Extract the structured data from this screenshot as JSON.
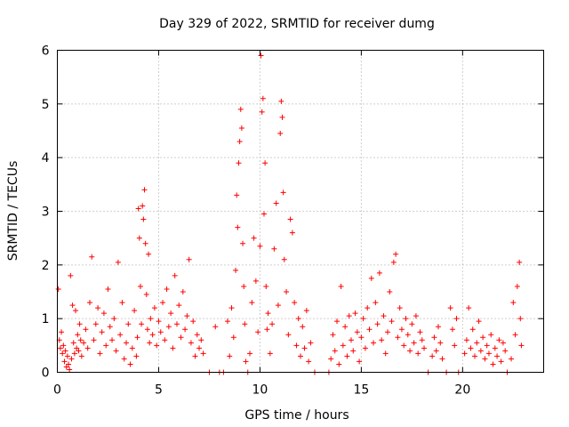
{
  "chart_data": {
    "type": "scatter",
    "title": "Day 329 of 2022, SRMTID for receiver dumg",
    "xlabel": "GPS time / hours",
    "ylabel": "SRMTID / TECUs",
    "xlim": [
      0,
      24
    ],
    "ylim": [
      0,
      6
    ],
    "xticks": [
      0,
      5,
      10,
      15,
      20
    ],
    "yticks": [
      0,
      1,
      2,
      3,
      4,
      5,
      6
    ],
    "grid": true,
    "marker": "+",
    "color": "#ff0000",
    "series": [
      {
        "name": "SRMTID",
        "points": [
          [
            0.05,
            1.55
          ],
          [
            0.1,
            0.6
          ],
          [
            0.15,
            0.45
          ],
          [
            0.2,
            0.75
          ],
          [
            0.25,
            0.35
          ],
          [
            0.3,
            0.5
          ],
          [
            0.35,
            0.2
          ],
          [
            0.4,
            0.4
          ],
          [
            0.45,
            0.1
          ],
          [
            0.5,
            0.3
          ],
          [
            0.55,
            0.15
          ],
          [
            0.6,
            0.05
          ],
          [
            0.65,
            1.8
          ],
          [
            0.7,
            0.25
          ],
          [
            0.75,
            1.25
          ],
          [
            0.8,
            0.55
          ],
          [
            0.85,
            0.35
          ],
          [
            0.9,
            1.15
          ],
          [
            0.95,
            0.45
          ],
          [
            1.0,
            0.7
          ],
          [
            1.05,
            0.4
          ],
          [
            1.1,
            0.9
          ],
          [
            1.15,
            0.6
          ],
          [
            1.2,
            0.3
          ],
          [
            1.3,
            0.55
          ],
          [
            1.4,
            0.8
          ],
          [
            1.5,
            0.45
          ],
          [
            1.6,
            1.3
          ],
          [
            1.7,
            2.15
          ],
          [
            1.8,
            0.6
          ],
          [
            1.9,
            0.9
          ],
          [
            2.0,
            1.2
          ],
          [
            2.1,
            0.35
          ],
          [
            2.2,
            0.75
          ],
          [
            2.3,
            1.1
          ],
          [
            2.4,
            0.5
          ],
          [
            2.5,
            1.55
          ],
          [
            2.6,
            0.85
          ],
          [
            2.7,
            0.6
          ],
          [
            2.8,
            1.0
          ],
          [
            2.9,
            0.4
          ],
          [
            3.0,
            2.05
          ],
          [
            3.1,
            0.7
          ],
          [
            3.2,
            1.3
          ],
          [
            3.3,
            0.25
          ],
          [
            3.4,
            0.55
          ],
          [
            3.5,
            0.9
          ],
          [
            3.6,
            0.15
          ],
          [
            3.7,
            0.45
          ],
          [
            3.8,
            1.15
          ],
          [
            3.9,
            0.3
          ],
          [
            3.95,
            0.65
          ],
          [
            4.0,
            3.05
          ],
          [
            4.05,
            2.5
          ],
          [
            4.1,
            1.6
          ],
          [
            4.15,
            0.9
          ],
          [
            4.2,
            3.1
          ],
          [
            4.25,
            2.85
          ],
          [
            4.3,
            3.4
          ],
          [
            4.35,
            2.4
          ],
          [
            4.4,
            1.45
          ],
          [
            4.45,
            0.8
          ],
          [
            4.5,
            2.2
          ],
          [
            4.55,
            0.55
          ],
          [
            4.6,
            1.0
          ],
          [
            4.7,
            0.7
          ],
          [
            4.8,
            1.2
          ],
          [
            4.9,
            0.5
          ],
          [
            5.0,
            0.95
          ],
          [
            5.1,
            0.75
          ],
          [
            5.2,
            1.3
          ],
          [
            5.3,
            0.6
          ],
          [
            5.4,
            1.55
          ],
          [
            5.5,
            0.85
          ],
          [
            5.6,
            1.1
          ],
          [
            5.7,
            0.45
          ],
          [
            5.8,
            1.8
          ],
          [
            5.9,
            0.9
          ],
          [
            6.0,
            1.25
          ],
          [
            6.1,
            0.65
          ],
          [
            6.2,
            1.5
          ],
          [
            6.3,
            0.8
          ],
          [
            6.4,
            1.05
          ],
          [
            6.5,
            2.1
          ],
          [
            6.6,
            0.55
          ],
          [
            6.7,
            0.95
          ],
          [
            6.8,
            0.3
          ],
          [
            6.9,
            0.7
          ],
          [
            7.0,
            0.45
          ],
          [
            7.1,
            0.6
          ],
          [
            7.2,
            0.35
          ],
          [
            7.5,
            0.0
          ],
          [
            7.8,
            0.85
          ],
          [
            8.0,
            0.0
          ],
          [
            8.2,
            0.0
          ],
          [
            8.4,
            0.95
          ],
          [
            8.5,
            0.3
          ],
          [
            8.6,
            1.2
          ],
          [
            8.7,
            0.65
          ],
          [
            8.8,
            1.9
          ],
          [
            8.85,
            3.3
          ],
          [
            8.9,
            2.7
          ],
          [
            8.95,
            3.9
          ],
          [
            9.0,
            4.3
          ],
          [
            9.05,
            4.9
          ],
          [
            9.1,
            4.55
          ],
          [
            9.15,
            2.4
          ],
          [
            9.2,
            1.6
          ],
          [
            9.25,
            0.9
          ],
          [
            9.3,
            0.2
          ],
          [
            9.4,
            0.0
          ],
          [
            9.5,
            0.35
          ],
          [
            9.6,
            1.3
          ],
          [
            9.7,
            2.5
          ],
          [
            9.8,
            1.7
          ],
          [
            9.9,
            0.75
          ],
          [
            10.0,
            2.35
          ],
          [
            10.05,
            5.9
          ],
          [
            10.1,
            4.85
          ],
          [
            10.15,
            5.1
          ],
          [
            10.2,
            2.95
          ],
          [
            10.25,
            3.9
          ],
          [
            10.3,
            1.6
          ],
          [
            10.35,
            0.8
          ],
          [
            10.4,
            1.1
          ],
          [
            10.5,
            0.35
          ],
          [
            10.6,
            0.9
          ],
          [
            10.7,
            2.3
          ],
          [
            10.8,
            3.15
          ],
          [
            10.9,
            1.25
          ],
          [
            11.0,
            4.45
          ],
          [
            11.05,
            5.05
          ],
          [
            11.1,
            4.75
          ],
          [
            11.15,
            3.35
          ],
          [
            11.2,
            2.1
          ],
          [
            11.3,
            1.5
          ],
          [
            11.4,
            0.7
          ],
          [
            11.5,
            2.85
          ],
          [
            11.6,
            2.6
          ],
          [
            11.7,
            1.3
          ],
          [
            11.8,
            0.5
          ],
          [
            11.9,
            1.0
          ],
          [
            12.0,
            0.3
          ],
          [
            12.1,
            0.85
          ],
          [
            12.2,
            0.45
          ],
          [
            12.3,
            1.15
          ],
          [
            12.4,
            0.2
          ],
          [
            12.5,
            0.55
          ],
          [
            12.7,
            0.0
          ],
          [
            13.4,
            0.0
          ],
          [
            13.5,
            0.25
          ],
          [
            13.6,
            0.7
          ],
          [
            13.7,
            0.4
          ],
          [
            13.8,
            0.95
          ],
          [
            13.9,
            0.15
          ],
          [
            14.0,
            1.6
          ],
          [
            14.1,
            0.5
          ],
          [
            14.2,
            0.85
          ],
          [
            14.3,
            0.3
          ],
          [
            14.4,
            1.05
          ],
          [
            14.5,
            0.6
          ],
          [
            14.6,
            0.4
          ],
          [
            14.7,
            1.1
          ],
          [
            14.8,
            0.75
          ],
          [
            14.9,
            0.2
          ],
          [
            15.0,
            0.65
          ],
          [
            15.1,
            1.0
          ],
          [
            15.2,
            0.45
          ],
          [
            15.3,
            1.2
          ],
          [
            15.4,
            0.8
          ],
          [
            15.5,
            1.75
          ],
          [
            15.6,
            0.55
          ],
          [
            15.7,
            1.3
          ],
          [
            15.8,
            0.9
          ],
          [
            15.9,
            1.85
          ],
          [
            16.0,
            0.6
          ],
          [
            16.1,
            1.05
          ],
          [
            16.2,
            0.35
          ],
          [
            16.3,
            0.75
          ],
          [
            16.4,
            1.5
          ],
          [
            16.5,
            0.95
          ],
          [
            16.6,
            2.05
          ],
          [
            16.7,
            2.2
          ],
          [
            16.8,
            0.65
          ],
          [
            16.9,
            1.2
          ],
          [
            17.0,
            0.8
          ],
          [
            17.1,
            0.5
          ],
          [
            17.2,
            1.0
          ],
          [
            17.3,
            0.7
          ],
          [
            17.4,
            0.4
          ],
          [
            17.5,
            0.9
          ],
          [
            17.6,
            0.55
          ],
          [
            17.7,
            1.05
          ],
          [
            17.8,
            0.35
          ],
          [
            17.9,
            0.75
          ],
          [
            18.0,
            0.6
          ],
          [
            18.1,
            0.45
          ],
          [
            18.3,
            0.0
          ],
          [
            18.5,
            0.3
          ],
          [
            18.6,
            0.65
          ],
          [
            18.7,
            0.4
          ],
          [
            18.8,
            0.85
          ],
          [
            18.9,
            0.55
          ],
          [
            19.0,
            0.25
          ],
          [
            19.2,
            0.0
          ],
          [
            19.4,
            1.2
          ],
          [
            19.5,
            0.8
          ],
          [
            19.6,
            0.5
          ],
          [
            19.7,
            1.0
          ],
          [
            19.8,
            0.0
          ],
          [
            20.1,
            0.35
          ],
          [
            20.2,
            0.6
          ],
          [
            20.3,
            1.2
          ],
          [
            20.4,
            0.45
          ],
          [
            20.5,
            0.8
          ],
          [
            20.6,
            0.3
          ],
          [
            20.7,
            0.55
          ],
          [
            20.8,
            0.95
          ],
          [
            20.9,
            0.4
          ],
          [
            21.0,
            0.65
          ],
          [
            21.1,
            0.25
          ],
          [
            21.2,
            0.5
          ],
          [
            21.3,
            0.35
          ],
          [
            21.4,
            0.7
          ],
          [
            21.5,
            0.15
          ],
          [
            21.6,
            0.45
          ],
          [
            21.7,
            0.3
          ],
          [
            21.8,
            0.6
          ],
          [
            21.9,
            0.2
          ],
          [
            22.0,
            0.55
          ],
          [
            22.1,
            0.4
          ],
          [
            22.2,
            0.0
          ],
          [
            22.4,
            0.25
          ],
          [
            22.5,
            1.3
          ],
          [
            22.6,
            0.7
          ],
          [
            22.7,
            1.6
          ],
          [
            22.8,
            2.05
          ],
          [
            22.85,
            1.0
          ],
          [
            22.9,
            0.5
          ]
        ]
      }
    ]
  }
}
